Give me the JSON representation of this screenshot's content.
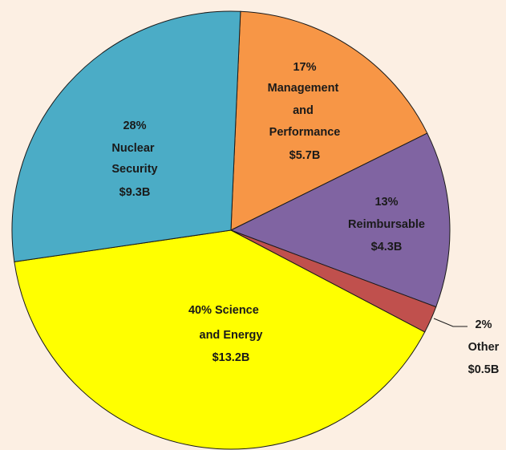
{
  "chart_data": {
    "type": "pie",
    "categories": [
      "Management and Performance",
      "Reimbursable",
      "Other",
      "Science and Energy",
      "Nuclear Security"
    ],
    "values": [
      17,
      13,
      2,
      40,
      28
    ],
    "value_labels": [
      "17%",
      "13%",
      "2%",
      "40%",
      "28%"
    ],
    "amounts": [
      5.7,
      4.3,
      0.5,
      13.2,
      9.3
    ],
    "amount_labels": [
      "$5.7B",
      "$4.3B",
      "$0.5B",
      "$13.2B",
      "$9.3B"
    ],
    "colors": [
      "#f79646",
      "#8064a2",
      "#c0504d",
      "#ffff00",
      "#4bacc6"
    ]
  }
}
